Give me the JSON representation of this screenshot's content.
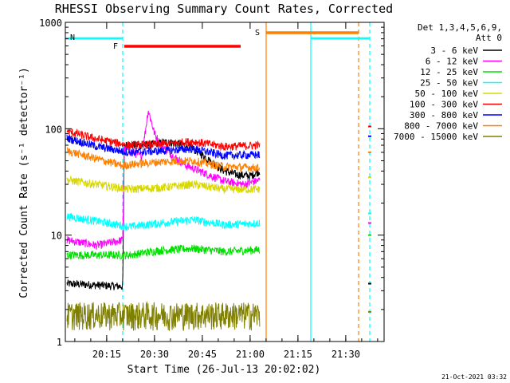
{
  "chart_data": {
    "type": "line",
    "title": "RHESSI Observing Summary Count Rates, Corrected",
    "xlabel": "Start Time (26-Jul-13 20:02:02)",
    "ylabel": "Corrected Count Rate (s⁻¹ detector⁻¹)",
    "yscale": "log",
    "ylim": [
      1,
      1000
    ],
    "xlim_minutes_after_start": [
      0,
      100
    ],
    "x_ticks": [
      {
        "label": "20:15",
        "minute": 12.97
      },
      {
        "label": "20:30",
        "minute": 27.97
      },
      {
        "label": "20:45",
        "minute": 42.97
      },
      {
        "label": "21:00",
        "minute": 57.97
      },
      {
        "label": "21:15",
        "minute": 72.97
      },
      {
        "label": "21:30",
        "minute": 87.97
      }
    ],
    "y_ticks": [
      {
        "label": "1",
        "value": 1
      },
      {
        "label": "10",
        "value": 10
      },
      {
        "label": "100",
        "value": 100
      },
      {
        "label": "1000",
        "value": 1000
      }
    ],
    "legend": {
      "placement": "right",
      "header": [
        "Det 1,3,4,5,6,9,",
        "Att 0"
      ]
    },
    "series": [
      {
        "name": "3 - 6 keV",
        "color": "#000000",
        "points": [
          [
            0.5,
            3.5
          ],
          [
            18,
            3.3
          ],
          [
            18.5,
            70
          ],
          [
            25,
            70
          ],
          [
            32,
            75
          ],
          [
            38,
            70
          ],
          [
            42,
            60
          ],
          [
            46,
            48
          ],
          [
            50,
            40
          ],
          [
            54,
            37
          ],
          [
            58,
            36
          ],
          [
            61,
            40
          ]
        ]
      },
      {
        "name": "6 - 12 keV",
        "color": "#ff00ff",
        "points": [
          [
            0.5,
            9
          ],
          [
            10,
            8
          ],
          [
            18,
            9
          ],
          [
            18.5,
            65
          ],
          [
            24,
            55
          ],
          [
            26,
            150
          ],
          [
            28,
            90
          ],
          [
            30,
            70
          ],
          [
            34,
            55
          ],
          [
            38,
            45
          ],
          [
            44,
            38
          ],
          [
            50,
            32
          ],
          [
            56,
            30
          ],
          [
            61,
            33
          ]
        ]
      },
      {
        "name": "12 - 25 keV",
        "color": "#00e000",
        "points": [
          [
            0.5,
            6.5
          ],
          [
            10,
            6.5
          ],
          [
            20,
            6.5
          ],
          [
            30,
            7.2
          ],
          [
            40,
            7.5
          ],
          [
            50,
            7
          ],
          [
            61,
            7.3
          ]
        ]
      },
      {
        "name": "25 - 50 keV",
        "color": "#00ffff",
        "points": [
          [
            0.5,
            15
          ],
          [
            10,
            13.5
          ],
          [
            20,
            12
          ],
          [
            30,
            13
          ],
          [
            40,
            14
          ],
          [
            50,
            12.5
          ],
          [
            61,
            13
          ]
        ]
      },
      {
        "name": "50 - 100 keV",
        "color": "#d8d800",
        "points": [
          [
            0.5,
            33
          ],
          [
            10,
            30
          ],
          [
            20,
            27
          ],
          [
            30,
            28
          ],
          [
            40,
            30
          ],
          [
            50,
            27
          ],
          [
            61,
            27
          ]
        ]
      },
      {
        "name": "100 - 300 keV",
        "color": "#ff0000",
        "points": [
          [
            0.5,
            95
          ],
          [
            10,
            80
          ],
          [
            20,
            70
          ],
          [
            30,
            72
          ],
          [
            40,
            76
          ],
          [
            50,
            68
          ],
          [
            61,
            70
          ]
        ]
      },
      {
        "name": "300 - 800 keV",
        "color": "#0000ff",
        "points": [
          [
            0.5,
            82
          ],
          [
            10,
            68
          ],
          [
            20,
            60
          ],
          [
            30,
            62
          ],
          [
            40,
            65
          ],
          [
            50,
            56
          ],
          [
            61,
            57
          ]
        ]
      },
      {
        "name": "800 - 7000 keV",
        "color": "#ff8000",
        "points": [
          [
            0.5,
            62
          ],
          [
            10,
            52
          ],
          [
            18,
            45
          ],
          [
            20,
            46
          ],
          [
            30,
            49
          ],
          [
            40,
            50
          ],
          [
            50,
            44
          ],
          [
            61,
            43
          ]
        ]
      },
      {
        "name": "7000 - 15000 keV",
        "color": "#808000",
        "points": [
          [
            0.5,
            1.8
          ],
          [
            18,
            1.8
          ],
          [
            28,
            1.8
          ],
          [
            46,
            1.8
          ],
          [
            61,
            1.8
          ]
        ]
      }
    ],
    "post_gap_points": [
      {
        "name": "3 - 6 keV",
        "color": "#000000",
        "minute": 95.5,
        "value": 3.5
      },
      {
        "name": "6 - 12 keV",
        "color": "#ff00ff",
        "minute": 95.5,
        "value": 13
      },
      {
        "name": "12 - 25 keV",
        "color": "#00e000",
        "minute": 95.5,
        "value": 10
      },
      {
        "name": "25 - 50 keV",
        "color": "#00ffff",
        "minute": 95.5,
        "value": 16
      },
      {
        "name": "50 - 100 keV",
        "color": "#d8d800",
        "minute": 95.5,
        "value": 35
      },
      {
        "name": "100 - 300 keV",
        "color": "#ff0000",
        "minute": 95.5,
        "value": 105
      },
      {
        "name": "300 - 800 keV",
        "color": "#0000ff",
        "minute": 95.5,
        "value": 85
      },
      {
        "name": "800 - 7000 keV",
        "color": "#ff8000",
        "minute": 95.5,
        "value": 60
      },
      {
        "name": "7000 - 15000 keV",
        "color": "#808000",
        "minute": 95.5,
        "value": 1.9
      }
    ],
    "flag_bars": [
      {
        "label": "N",
        "color": "#00ffff",
        "intervals": [
          [
            0,
            18
          ],
          [
            77,
            95.5
          ]
        ]
      },
      {
        "label": "F",
        "color": "#ff0000",
        "intervals": [
          [
            18.5,
            55
          ]
        ]
      },
      {
        "label": "S",
        "color": "#ff8000",
        "intervals": [
          [
            63,
            92
          ]
        ]
      }
    ],
    "markers": [
      {
        "minute": 18,
        "color": "#00ffff",
        "style": "dashed"
      },
      {
        "minute": 63,
        "color": "#ff8000",
        "style": "solid"
      },
      {
        "minute": 77,
        "color": "#00ffff",
        "style": "solid"
      },
      {
        "minute": 92,
        "color": "#ff8000",
        "style": "dashed"
      },
      {
        "minute": 95.5,
        "color": "#00ffff",
        "style": "dashed"
      }
    ]
  },
  "footer": {
    "timestamp": "21-Oct-2021 03:32"
  }
}
